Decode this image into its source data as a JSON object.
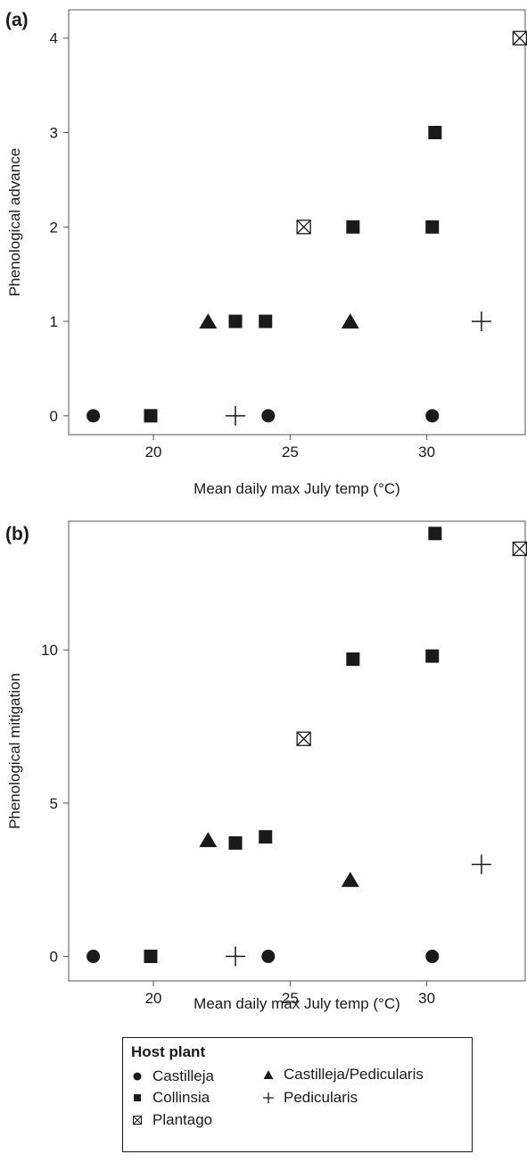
{
  "chart_data": [
    {
      "type": "scatter",
      "panel_label": "(a)",
      "xlabel": "Mean daily max July temp (°C)",
      "ylabel": "Phenological advance",
      "xlim": [
        16.9,
        33.6
      ],
      "ylim": [
        -0.2,
        4.3
      ],
      "xticks": [
        20,
        25,
        30
      ],
      "yticks": [
        0,
        1,
        2,
        3,
        4
      ],
      "series": [
        {
          "name": "Castilleja",
          "marker": "circle",
          "points": [
            [
              17.8,
              0
            ],
            [
              24.2,
              0
            ],
            [
              30.2,
              0
            ]
          ]
        },
        {
          "name": "Castilleja/Pedicularis",
          "marker": "triangle",
          "points": [
            [
              22.0,
              1
            ],
            [
              27.2,
              1
            ]
          ]
        },
        {
          "name": "Collinsia",
          "marker": "square",
          "points": [
            [
              19.9,
              0
            ],
            [
              23.0,
              1
            ],
            [
              24.1,
              1
            ],
            [
              27.3,
              2
            ],
            [
              30.2,
              2
            ],
            [
              30.3,
              3
            ]
          ]
        },
        {
          "name": "Pedicularis",
          "marker": "plus",
          "points": [
            [
              23.0,
              0
            ],
            [
              32.0,
              1
            ]
          ]
        },
        {
          "name": "Plantago",
          "marker": "boxx",
          "points": [
            [
              25.5,
              2
            ],
            [
              33.4,
              4
            ]
          ]
        }
      ]
    },
    {
      "type": "scatter",
      "panel_label": "(b)",
      "xlabel": "Mean daily max July temp (°C)",
      "ylabel": "Phenological mitigation",
      "xlim": [
        16.9,
        33.6
      ],
      "ylim": [
        -0.8,
        14.2
      ],
      "xticks": [
        20,
        25,
        30
      ],
      "yticks": [
        0,
        5,
        10
      ],
      "series": [
        {
          "name": "Castilleja",
          "marker": "circle",
          "points": [
            [
              17.8,
              0
            ],
            [
              24.2,
              0
            ],
            [
              30.2,
              0
            ]
          ]
        },
        {
          "name": "Castilleja/Pedicularis",
          "marker": "triangle",
          "points": [
            [
              22.0,
              3.8
            ],
            [
              27.2,
              2.5
            ]
          ]
        },
        {
          "name": "Collinsia",
          "marker": "square",
          "points": [
            [
              19.9,
              0
            ],
            [
              23.0,
              3.7
            ],
            [
              24.1,
              3.9
            ],
            [
              27.3,
              9.7
            ],
            [
              30.2,
              9.8
            ],
            [
              30.3,
              13.8
            ]
          ]
        },
        {
          "name": "Pedicularis",
          "marker": "plus",
          "points": [
            [
              23.0,
              0
            ],
            [
              32.0,
              3.0
            ]
          ]
        },
        {
          "name": "Plantago",
          "marker": "boxx",
          "points": [
            [
              25.5,
              7.1
            ],
            [
              33.4,
              13.3
            ]
          ]
        }
      ]
    }
  ],
  "legend": {
    "title": "Host plant",
    "items": [
      {
        "label": "Castilleja",
        "marker": "circle"
      },
      {
        "label": "Castilleja/Pedicularis",
        "marker": "triangle"
      },
      {
        "label": "Collinsia",
        "marker": "square"
      },
      {
        "label": "Pedicularis",
        "marker": "plus"
      },
      {
        "label": "Plantago",
        "marker": "boxx"
      }
    ]
  },
  "colors": {
    "ink": "#1a1a1a",
    "axis": "#555555",
    "background": "#ffffff"
  }
}
